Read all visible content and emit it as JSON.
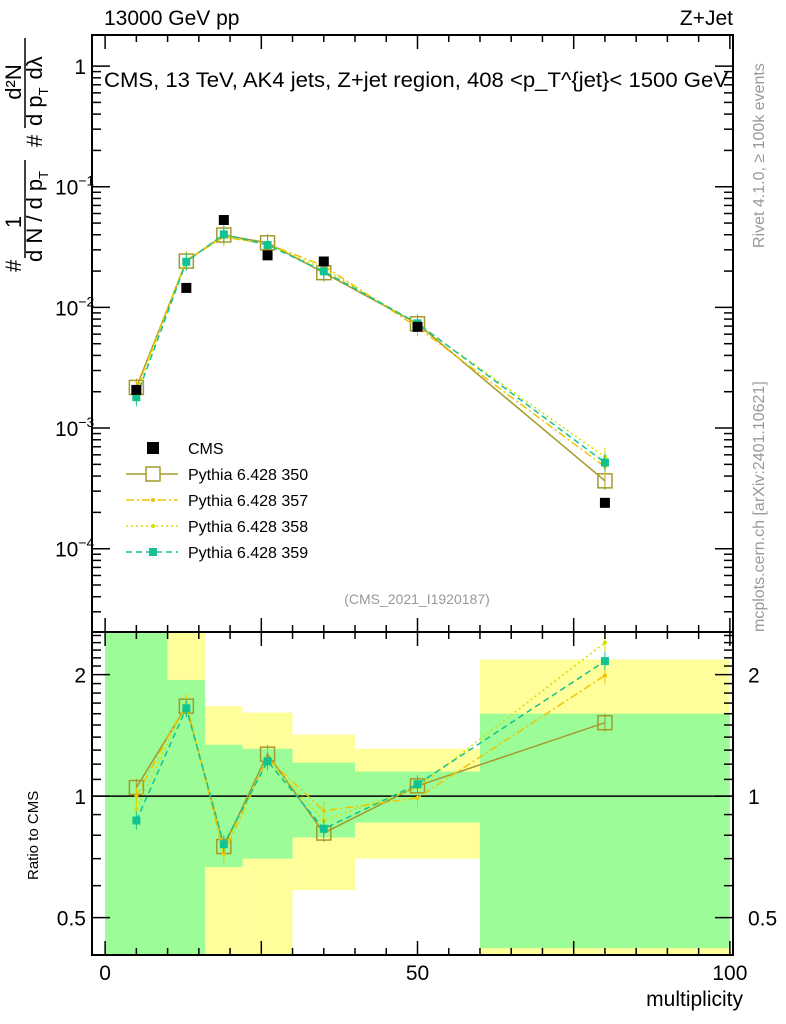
{
  "header": {
    "left": "13000 GeV pp",
    "right": "Z+Jet"
  },
  "side_text": {
    "top": "Rivet 4.1.0, ≥ 100k events",
    "bottom": "mcplots.cern.ch [arXiv:2401.10621]"
  },
  "analysis_id": "(CMS_2021_I1920187)",
  "colors": {
    "cms": "#000000",
    "p350": "#a39a2b",
    "p357": "#f0c400",
    "p358": "#d8dc00",
    "p359": "#12c391",
    "band_inner": "#9cfc98",
    "band_outer": "#fefe9a"
  },
  "chart_data": [
    {
      "type": "line",
      "title": "CMS, 13 TeV, AK4 jets, Z+jet region, 408 <p_T^{jet}< 1500 GeV",
      "title_parts": {
        "main": "CMS, 13 TeV, AK4 jets, Z+jet region, 408 <p",
        "sup": "{jet}",
        "sub": "T",
        "end": "}< 1500 GeV"
      },
      "ylabel": {
        "num1": "1",
        "den1": "d N / d p",
        "den1_sub": "T",
        "hash": "#",
        "num2": "d²N",
        "den2": "d p",
        "den2_sub": "T",
        "den2_end": "dλ"
      },
      "yscale": "log",
      "ylim": [
        2.04e-05,
        1.81
      ],
      "xlim": [
        -2.1,
        100.5
      ],
      "yticks": [
        {
          "v": 1,
          "label": "1"
        },
        {
          "v": 0.1,
          "label": "10",
          "exp": "−1"
        },
        {
          "v": 0.01,
          "label": "10",
          "exp": "−2"
        },
        {
          "v": 0.001,
          "label": "10",
          "exp": "−3"
        },
        {
          "v": 0.0001,
          "label": "10",
          "exp": "−4"
        }
      ],
      "x": [
        5,
        13,
        19,
        26,
        35,
        50,
        80
      ],
      "legend": {
        "position": "bottom-left"
      },
      "series": [
        {
          "name": "CMS",
          "key": "cms",
          "values": [
            0.00207,
            0.0145,
            0.053,
            0.027,
            0.024,
            0.0069,
            0.00024
          ]
        },
        {
          "name": "Pythia 6.428 350",
          "key": "p350",
          "values": [
            0.00217,
            0.0242,
            0.0398,
            0.0343,
            0.0194,
            0.00731,
            0.000365
          ]
        },
        {
          "name": "Pythia 6.428 357",
          "key": "p357",
          "values": [
            0.00207,
            0.0247,
            0.0382,
            0.0335,
            0.0221,
            0.00683,
            0.000478
          ]
        },
        {
          "name": "Pythia 6.428 358",
          "key": "p358",
          "values": [
            0.00193,
            0.0245,
            0.0392,
            0.0332,
            0.0209,
            0.00725,
            0.000576
          ]
        },
        {
          "name": "Pythia 6.428 359",
          "key": "p359",
          "values": [
            0.0018,
            0.0239,
            0.0403,
            0.0329,
            0.0199,
            0.00738,
            0.000518
          ]
        }
      ]
    },
    {
      "type": "line",
      "ylabel": "Ratio to CMS",
      "xlabel": "multiplicity",
      "yscale": "log",
      "ylim": [
        0.404,
        2.55
      ],
      "xlim": [
        -2.1,
        100.5
      ],
      "yticks": [
        {
          "v": 0.5,
          "label": "0.5"
        },
        {
          "v": 1,
          "label": "1"
        },
        {
          "v": 2,
          "label": "2"
        }
      ],
      "xticks": [
        {
          "v": 0,
          "label": "0"
        },
        {
          "v": 50,
          "label": "50"
        },
        {
          "v": 100,
          "label": "100"
        }
      ],
      "x": [
        5,
        13,
        19,
        26,
        35,
        50,
        80
      ],
      "bins": [
        [
          0,
          10
        ],
        [
          10,
          16
        ],
        [
          16,
          22
        ],
        [
          22,
          30
        ],
        [
          30,
          40
        ],
        [
          40,
          60
        ],
        [
          60,
          100
        ]
      ],
      "band_inner": [
        [
          0.3,
          3
        ],
        [
          0.3,
          1.94
        ],
        [
          0.667,
          1.34
        ],
        [
          0.7,
          1.31
        ],
        [
          0.79,
          1.21
        ],
        [
          0.86,
          1.15
        ],
        [
          0.42,
          1.6
        ]
      ],
      "band_outer": [
        [
          0.3,
          3
        ],
        [
          0.3,
          3
        ],
        [
          0.3,
          1.67
        ],
        [
          0.3,
          1.61
        ],
        [
          0.585,
          1.42
        ],
        [
          0.7,
          1.31
        ],
        [
          0.39,
          2.18
        ]
      ],
      "series": [
        {
          "name": "Pythia 6.428 350",
          "key": "p350",
          "values": [
            1.05,
            1.67,
            0.75,
            1.27,
            0.81,
            1.06,
            1.52
          ]
        },
        {
          "name": "Pythia 6.428 357",
          "key": "p357",
          "values": [
            1.0,
            1.7,
            0.72,
            1.24,
            0.92,
            0.99,
            1.99
          ]
        },
        {
          "name": "Pythia 6.428 358",
          "key": "p358",
          "values": [
            0.93,
            1.69,
            0.74,
            1.23,
            0.87,
            1.05,
            2.4
          ]
        },
        {
          "name": "Pythia 6.428 359",
          "key": "p359",
          "values": [
            0.87,
            1.65,
            0.76,
            1.22,
            0.83,
            1.07,
            2.16
          ]
        }
      ]
    }
  ]
}
